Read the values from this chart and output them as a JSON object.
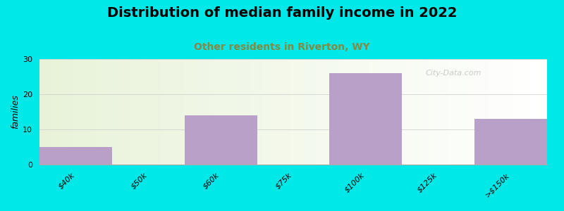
{
  "title": "Distribution of median family income in 2022",
  "subtitle": "Other residents in Riverton, WY",
  "ylabel": "families",
  "categories": [
    "$40k",
    "$50k",
    "$60k",
    "$75k",
    "$100k",
    "$125k",
    ">$150k"
  ],
  "values": [
    5,
    0,
    14,
    0,
    26,
    0,
    13
  ],
  "bar_color": "#b8a0c8",
  "background_color": "#00e8e8",
  "title_fontsize": 14,
  "subtitle_fontsize": 10,
  "subtitle_color": "#888844",
  "ylabel_fontsize": 9,
  "tick_fontsize": 8,
  "ylim": [
    0,
    30
  ],
  "yticks": [
    0,
    10,
    20,
    30
  ],
  "watermark": "City-Data.com",
  "grid_color": "#cccccc"
}
